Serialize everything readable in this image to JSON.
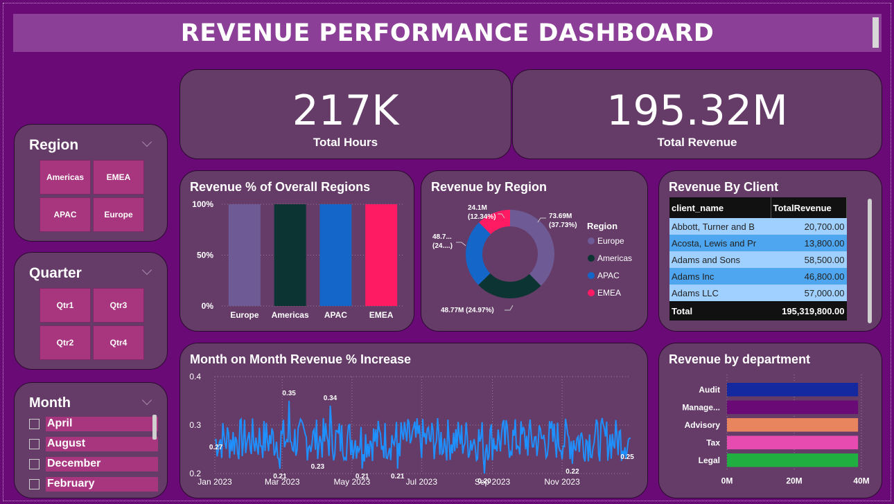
{
  "header": {
    "title": "REVENUE PERFORMANCE DASHBOARD"
  },
  "kpis": {
    "hours": {
      "value": "217K",
      "label": "Total Hours"
    },
    "revenue": {
      "value": "195.32M",
      "label": "Total Revenue"
    }
  },
  "slicers": {
    "region": {
      "title": "Region",
      "items": [
        "Americas",
        "EMEA",
        "APAC",
        "Europe"
      ]
    },
    "quarter": {
      "title": "Quarter",
      "items": [
        "Qtr1",
        "Qtr3",
        "Qtr2",
        "Qtr4"
      ]
    },
    "month": {
      "title": "Month",
      "items": [
        "April",
        "August",
        "December",
        "February"
      ]
    }
  },
  "pct_chart": {
    "title": "Revenue % of Overall Regions",
    "chart_data": {
      "type": "bar",
      "categories": [
        "Europe",
        "Americas",
        "APAC",
        "EMEA"
      ],
      "values": [
        100,
        100,
        100,
        100
      ],
      "yticks": [
        "100%",
        "50%",
        "0%"
      ],
      "ylim": [
        0,
        100
      ],
      "colors": [
        "#6e5a94",
        "#0c3432",
        "#1467c8",
        "#ff1b63"
      ]
    }
  },
  "donut": {
    "title": "Revenue by Region",
    "legend_title": "Region",
    "chart_data": {
      "type": "pie",
      "labels": [
        "Europe",
        "Americas",
        "APAC",
        "EMEA"
      ],
      "values": [
        73.69,
        48.77,
        48.7,
        24.1
      ],
      "colors": [
        "#6e5a94",
        "#0c3432",
        "#1467c8",
        "#ff1b63"
      ],
      "data_labels": [
        [
          "73.69M",
          "(37.73%)"
        ],
        [
          "48.77M (24.97%)"
        ],
        [
          "48.7...",
          "(24....)"
        ],
        [
          "24.1M",
          "(12.34%)"
        ]
      ]
    }
  },
  "client_table": {
    "title": "Revenue By Client",
    "columns": [
      "client_name",
      "TotalRevenue"
    ],
    "rows": [
      [
        "Abbott, Turner and B",
        "20,700.00"
      ],
      [
        "Acosta, Lewis and Pr",
        "13,800.00"
      ],
      [
        "Adams and Sons",
        "58,500.00"
      ],
      [
        "Adams Inc",
        "46,800.00"
      ],
      [
        "Adams LLC",
        "57,000.00"
      ]
    ],
    "total": [
      "Total",
      "195,319,800.00"
    ]
  },
  "line_chart": {
    "title": "Month on Month Revenue % Increase",
    "chart_data": {
      "type": "line",
      "x_range": [
        "2023-01-01",
        "2023-12-31"
      ],
      "ylim": [
        0.2,
        0.4
      ],
      "yticks": [
        "0.4",
        "0.3",
        "0.2"
      ],
      "xticks": [
        "Jan 2023",
        "Mar 2023",
        "May 2023",
        "Jul 2023",
        "Sep 2023",
        "Nov 2023"
      ],
      "annotations": [
        {
          "x": "2023-01-02",
          "y": 0.27,
          "label": "0.27"
        },
        {
          "x": "2023-03-07",
          "y": 0.35,
          "label": "0.35"
        },
        {
          "x": "2023-02-27",
          "y": 0.21,
          "label": "0.21"
        },
        {
          "x": "2023-04-01",
          "y": 0.23,
          "label": "0.23"
        },
        {
          "x": "2023-04-12",
          "y": 0.34,
          "label": "0.34"
        },
        {
          "x": "2023-05-10",
          "y": 0.21,
          "label": "0.21"
        },
        {
          "x": "2023-06-10",
          "y": 0.21,
          "label": "0.21"
        },
        {
          "x": "2023-08-25",
          "y": 0.2,
          "label": "0.20"
        },
        {
          "x": "2023-11-10",
          "y": 0.22,
          "label": "0.22"
        },
        {
          "x": "2023-12-28",
          "y": 0.25,
          "label": "0.25"
        }
      ],
      "color": "#1e90ff"
    }
  },
  "dept_chart": {
    "title": "Revenue by department",
    "chart_data": {
      "type": "bar",
      "orientation": "horizontal",
      "categories": [
        "Audit",
        "Manage...",
        "Advisory",
        "Tax",
        "Legal"
      ],
      "values": [
        39,
        39,
        39,
        39,
        39
      ],
      "xlim": [
        0,
        40
      ],
      "xticks": [
        "0M",
        "20M",
        "40M"
      ],
      "colors": [
        "#1428a0",
        "#6a0a77",
        "#e8845e",
        "#e84bb0",
        "#1fae3f"
      ]
    }
  }
}
